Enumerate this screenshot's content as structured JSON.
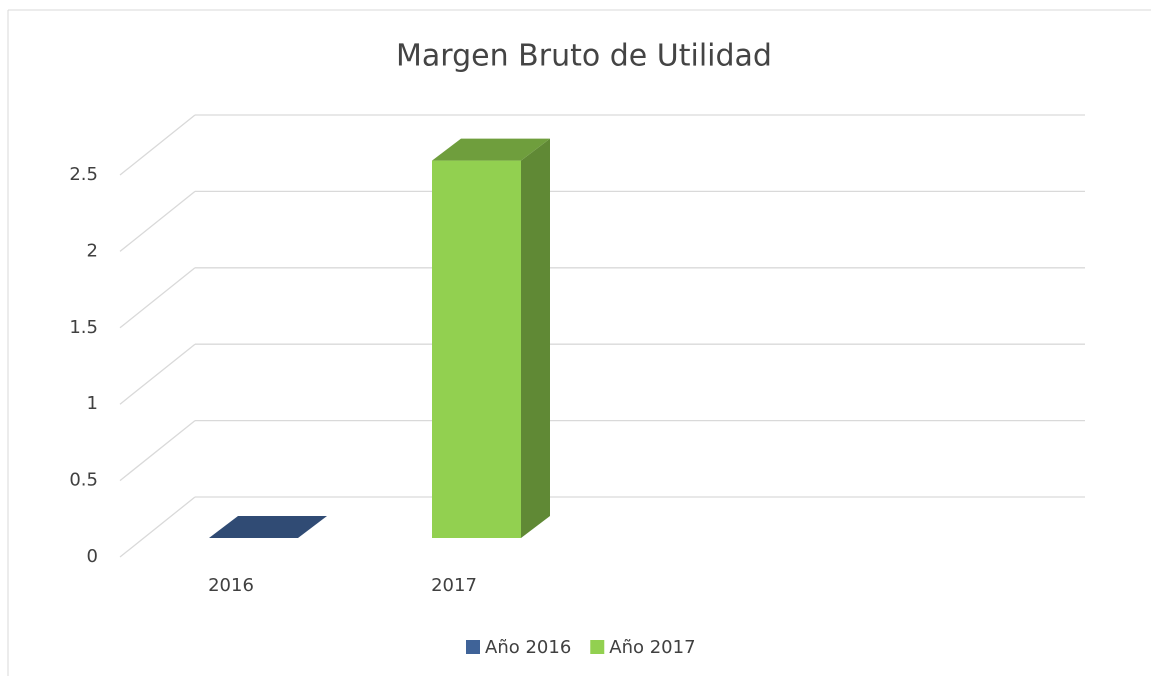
{
  "chart_data": {
    "type": "bar3d",
    "title": "Margen Bruto de Utilidad",
    "categories": [
      "2016",
      "2017"
    ],
    "series": [
      {
        "name": "Año 2016",
        "color": "#3f6398",
        "values": [
          0,
          null
        ]
      },
      {
        "name": "Año 2017",
        "color": "#92d050",
        "values": [
          null,
          2.47
        ]
      }
    ],
    "ylim": [
      0,
      2.5
    ],
    "yticks": [
      0,
      0.5,
      1,
      1.5,
      2,
      2.5
    ],
    "grid": true,
    "legend": "bottom"
  }
}
